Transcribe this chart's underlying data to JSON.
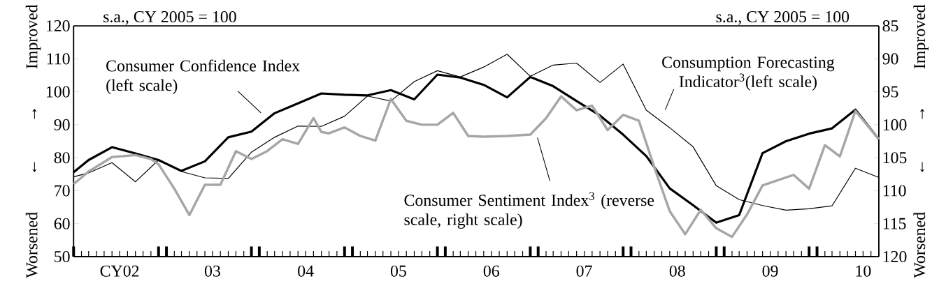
{
  "chart_data": {
    "type": "line",
    "annotations": [
      "s.a., CY 2005 = 100",
      "s.a., CY 2005 = 100"
    ],
    "ylabel": "Worsened ← → Improved",
    "y2label": "Worsened ← → Improved",
    "xlim": [
      "2002-01",
      "2010-09"
    ],
    "xticks": [
      {
        "value": "2002-07-01",
        "label": "CY02"
      },
      {
        "value": "2003-07-01",
        "label": "03"
      },
      {
        "value": "2004-07-01",
        "label": "04"
      },
      {
        "value": "2005-07-01",
        "label": "05"
      },
      {
        "value": "2006-07-01",
        "label": "06"
      },
      {
        "value": "2007-07-01",
        "label": "07"
      },
      {
        "value": "2008-07-01",
        "label": "08"
      },
      {
        "value": "2009-07-01",
        "label": "09"
      },
      {
        "value": "2010-07-01",
        "label": "10"
      },
      {
        "value": "2002-01",
        "label": null
      },
      {
        "value": "2002-02",
        "label": null
      },
      {
        "value": "2002-03",
        "label": null
      },
      {
        "value": "2002-04",
        "label": null
      },
      {
        "value": "2002-05",
        "label": null
      },
      {
        "value": "2002-06",
        "label": null
      },
      {
        "value": "2002-07",
        "label": null
      },
      {
        "value": "2002-08",
        "label": null
      },
      {
        "value": "2002-09",
        "label": null
      },
      {
        "value": "2002-10",
        "label": null
      },
      {
        "value": "2002-11",
        "label": null
      },
      {
        "value": "2002-12",
        "label": null
      },
      {
        "value": "2003-01",
        "label": null
      },
      {
        "value": "2003-02",
        "label": null
      },
      {
        "value": "2003-03",
        "label": null
      },
      {
        "value": "2003-04",
        "label": null
      },
      {
        "value": "2003-05",
        "label": null
      },
      {
        "value": "2003-06",
        "label": null
      },
      {
        "value": "2003-07",
        "label": null
      },
      {
        "value": "2003-08",
        "label": null
      },
      {
        "value": "2003-09",
        "label": null
      },
      {
        "value": "2003-10",
        "label": null
      },
      {
        "value": "2003-11",
        "label": null
      },
      {
        "value": "2003-12",
        "label": null
      },
      {
        "value": "2004-01",
        "label": null
      },
      {
        "value": "2004-02",
        "label": null
      },
      {
        "value": "2004-03",
        "label": null
      },
      {
        "value": "2004-04",
        "label": null
      },
      {
        "value": "2004-05",
        "label": null
      },
      {
        "value": "2004-06",
        "label": null
      },
      {
        "value": "2004-07",
        "label": null
      },
      {
        "value": "2004-08",
        "label": null
      },
      {
        "value": "2004-09",
        "label": null
      },
      {
        "value": "2004-10",
        "label": null
      },
      {
        "value": "2004-11",
        "label": null
      },
      {
        "value": "2004-12",
        "label": null
      },
      {
        "value": "2005-01",
        "label": null
      },
      {
        "value": "2005-02",
        "label": null
      },
      {
        "value": "2005-03",
        "label": null
      },
      {
        "value": "2005-04",
        "label": null
      },
      {
        "value": "2005-05",
        "label": null
      },
      {
        "value": "2005-06",
        "label": null
      },
      {
        "value": "2005-07",
        "label": null
      },
      {
        "value": "2005-08",
        "label": null
      },
      {
        "value": "2005-09",
        "label": null
      },
      {
        "value": "2005-10",
        "label": null
      },
      {
        "value": "2005-11",
        "label": null
      },
      {
        "value": "2005-12",
        "label": null
      },
      {
        "value": "2006-01",
        "label": null
      },
      {
        "value": "2006-02",
        "label": null
      },
      {
        "value": "2006-03",
        "label": null
      },
      {
        "value": "2006-04",
        "label": null
      },
      {
        "value": "2006-05",
        "label": null
      },
      {
        "value": "2006-06",
        "label": null
      },
      {
        "value": "2006-07",
        "label": null
      },
      {
        "value": "2006-08",
        "label": null
      },
      {
        "value": "2006-09",
        "label": null
      },
      {
        "value": "2006-10",
        "label": null
      },
      {
        "value": "2006-11",
        "label": null
      },
      {
        "value": "2006-12",
        "label": null
      },
      {
        "value": "2007-01",
        "label": null
      },
      {
        "value": "2007-02",
        "label": null
      },
      {
        "value": "2007-03",
        "label": null
      },
      {
        "value": "2007-04",
        "label": null
      },
      {
        "value": "2007-05",
        "label": null
      },
      {
        "value": "2007-06",
        "label": null
      },
      {
        "value": "2007-07",
        "label": null
      },
      {
        "value": "2007-08",
        "label": null
      },
      {
        "value": "2007-09",
        "label": null
      },
      {
        "value": "2007-10",
        "label": null
      },
      {
        "value": "2007-11",
        "label": null
      },
      {
        "value": "2007-12",
        "label": null
      },
      {
        "value": "2008-01",
        "label": null
      },
      {
        "value": "2008-02",
        "label": null
      },
      {
        "value": "2008-03",
        "label": null
      },
      {
        "value": "2008-04",
        "label": null
      },
      {
        "value": "2008-05",
        "label": null
      },
      {
        "value": "2008-06",
        "label": null
      },
      {
        "value": "2008-07",
        "label": null
      },
      {
        "value": "2008-08",
        "label": null
      },
      {
        "value": "2008-09",
        "label": null
      },
      {
        "value": "2008-10",
        "label": null
      },
      {
        "value": "2008-11",
        "label": null
      },
      {
        "value": "2008-12",
        "label": null
      },
      {
        "value": "2009-01",
        "label": null
      },
      {
        "value": "2009-02",
        "label": null
      },
      {
        "value": "2009-03",
        "label": null
      },
      {
        "value": "2009-04",
        "label": null
      },
      {
        "value": "2009-05",
        "label": null
      },
      {
        "value": "2009-06",
        "label": null
      },
      {
        "value": "2009-07",
        "label": null
      },
      {
        "value": "2009-08",
        "label": null
      },
      {
        "value": "2009-09",
        "label": null
      },
      {
        "value": "2009-10",
        "label": null
      },
      {
        "value": "2009-11",
        "label": null
      },
      {
        "value": "2009-12",
        "label": null
      },
      {
        "value": "2010-01",
        "label": null
      },
      {
        "value": "2010-02",
        "label": null
      },
      {
        "value": "2010-03",
        "label": null
      },
      {
        "value": "2010-04",
        "label": null
      },
      {
        "value": "2010-05",
        "label": null
      },
      {
        "value": "2010-06",
        "label": null
      },
      {
        "value": "2010-07",
        "label": null
      },
      {
        "value": "2010-08",
        "label": null
      },
      {
        "value": "2010-09",
        "label": null
      }
    ],
    "ylim": [
      50,
      120
    ],
    "yticks": [
      50,
      60,
      70,
      80,
      90,
      100,
      110,
      120
    ],
    "y2lim": [
      120,
      85
    ],
    "y2ticks": [
      85,
      90,
      95,
      100,
      105,
      110,
      115,
      120
    ],
    "series": [
      {
        "name": "Consumer Confidence Index (left scale)",
        "color": "#000000",
        "x": [
          "2002-01",
          "2002-03",
          "2002-06",
          "2002-09",
          "2002-12",
          "2003-03",
          "2003-06",
          "2003-09",
          "2003-12",
          "2004-03",
          "2004-06",
          "2004-09",
          "2004-12",
          "2005-03",
          "2005-06",
          "2005-09",
          "2005-12",
          "2006-03",
          "2006-06",
          "2006-09",
          "2006-12",
          "2007-03",
          "2007-06",
          "2007-09",
          "2007-12",
          "2008-03",
          "2008-06",
          "2008-09",
          "2008-12",
          "2009-03",
          "2009-06",
          "2009-09",
          "2009-12",
          "2010-03",
          "2010-06",
          "2010-09"
        ],
        "values": [
          75.6,
          79.3,
          83.2,
          81.3,
          79.3,
          76.0,
          78.9,
          86.2,
          87.9,
          93.5,
          96.5,
          99.5,
          99.1,
          98.9,
          100.5,
          97.7,
          105.2,
          104.3,
          102.1,
          98.3,
          104.5,
          101.7,
          97.2,
          92.8,
          87.0,
          80.5,
          70.7,
          65.6,
          60.3,
          62.6,
          81.4,
          85.0,
          87.3,
          88.9,
          94.6,
          85.6
        ]
      },
      {
        "name": "Consumption Forecasting Indicator$^{3}$(left scale)",
        "color": "#000000",
        "x": [
          "2002-01",
          "2002-03",
          "2002-06",
          "2002-09",
          "2002-12",
          "2003-03",
          "2003-06",
          "2003-09",
          "2003-12",
          "2004-03",
          "2004-06",
          "2004-09",
          "2004-12",
          "2005-03",
          "2005-06",
          "2005-09",
          "2005-12",
          "2006-03",
          "2006-06",
          "2006-09",
          "2006-12",
          "2007-03",
          "2007-06",
          "2007-09",
          "2007-12",
          "2008-03",
          "2008-06",
          "2008-09",
          "2008-12",
          "2009-03",
          "2009-06",
          "2009-09",
          "2009-12",
          "2010-03",
          "2010-06",
          "2010-09"
        ],
        "values": [
          74.2,
          75.4,
          78.5,
          72.7,
          79.3,
          75.8,
          73.9,
          73.7,
          81.7,
          86.2,
          89.6,
          89.5,
          92.6,
          98.7,
          97.2,
          103.1,
          106.4,
          104.5,
          107.5,
          111.4,
          104.7,
          108.1,
          108.7,
          102.8,
          108.4,
          94.4,
          89.1,
          83.3,
          71.5,
          67.3,
          65.5,
          64.1,
          64.5,
          65.4,
          76.8,
          74.0
        ]
      },
      {
        "name": "Consumer Sentiment Index$^{3}$ (reverse scale, right scale)",
        "color": "#a6a6a6",
        "axis": "y2",
        "x": [
          "2002-01",
          "2002-03",
          "2002-06",
          "2002-09",
          "2002-11",
          "2002-12",
          "2003-02",
          "2003-04",
          "2003-06",
          "2003-08",
          "2003-10",
          "2003-12",
          "2004-02",
          "2004-04",
          "2004-06",
          "2004-08",
          "2004-09",
          "2004-10",
          "2004-12",
          "2005-02",
          "2005-04",
          "2005-06",
          "2005-08",
          "2005-10",
          "2005-12",
          "2006-02",
          "2006-04",
          "2006-06",
          "2006-09",
          "2006-12",
          "2007-02",
          "2007-04",
          "2007-06",
          "2007-08",
          "2007-10",
          "2007-12",
          "2008-02",
          "2008-04",
          "2008-06",
          "2008-08",
          "2008-10",
          "2008-12",
          "2009-02",
          "2009-04",
          "2009-06",
          "2009-10",
          "2009-12",
          "2010-02",
          "2010-04",
          "2010-06",
          "2010-09"
        ],
        "values": [
          109.0,
          107.1,
          104.9,
          104.6,
          105.2,
          106.0,
          109.7,
          113.7,
          109.1,
          109.1,
          104.0,
          105.2,
          104.0,
          102.2,
          102.9,
          99.0,
          101.1,
          101.3,
          100.4,
          101.7,
          102.4,
          96.1,
          99.4,
          100.0,
          100.0,
          98.2,
          101.7,
          101.8,
          101.7,
          101.5,
          99.0,
          95.7,
          97.8,
          97.1,
          100.8,
          98.5,
          99.4,
          106.4,
          113.1,
          116.6,
          112.9,
          115.7,
          117.0,
          113.6,
          109.2,
          107.6,
          109.7,
          103.1,
          104.8,
          97.9,
          102.2
        ]
      }
    ]
  }
}
